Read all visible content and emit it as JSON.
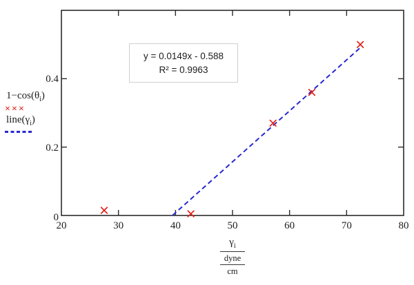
{
  "chart_data": {
    "type": "scatter",
    "title": "",
    "xlabel": "gamma_i (dyne/cm)",
    "ylabel": "1 - cos(theta_i)",
    "xlim": [
      20,
      80
    ],
    "ylim": [
      0,
      0.6
    ],
    "x_ticks": [
      20,
      30,
      40,
      50,
      60,
      70,
      80
    ],
    "x_tick_labels": [
      "20",
      "30",
      "40",
      "50",
      "60",
      "70",
      "80"
    ],
    "y_ticks": [
      0,
      0.2,
      0.4
    ],
    "y_tick_labels": [
      "0",
      "0.2",
      "0.4"
    ],
    "grid": false,
    "legend_position": "left-outside",
    "series": [
      {
        "name": "1−cos(θi)",
        "marker": "x",
        "points": [
          [
            27.5,
            0.015
          ],
          [
            42.7,
            0.005
          ],
          [
            57.1,
            0.27
          ],
          [
            63.9,
            0.36
          ],
          [
            72.4,
            0.5
          ]
        ]
      }
    ],
    "trendline": {
      "name": "line(γi)",
      "style": "dashed",
      "slope": 0.0149,
      "intercept": -0.588,
      "x_start": 39.5,
      "x_end": 72.3
    }
  },
  "annotation": {
    "line1": "y = 0.0149x - 0.588",
    "line2": "R² = 0.9963"
  },
  "legend": {
    "series1_pre": "1−cos(θ",
    "series1_sub": "i",
    "series1_post": ")",
    "series1_marker": "×××",
    "series2_pre": "line(γ",
    "series2_sub": "i",
    "series2_post": ")"
  },
  "xlabel_parts": {
    "numerator": "γ",
    "numerator_sub": "i",
    "denominator_top": "dyne",
    "denominator_bottom": "cm"
  },
  "colors": {
    "frame": "#2b2b2b",
    "marker": "#e2231a",
    "trendline": "#2727d2",
    "annotation_border": "#cfcfcf"
  }
}
